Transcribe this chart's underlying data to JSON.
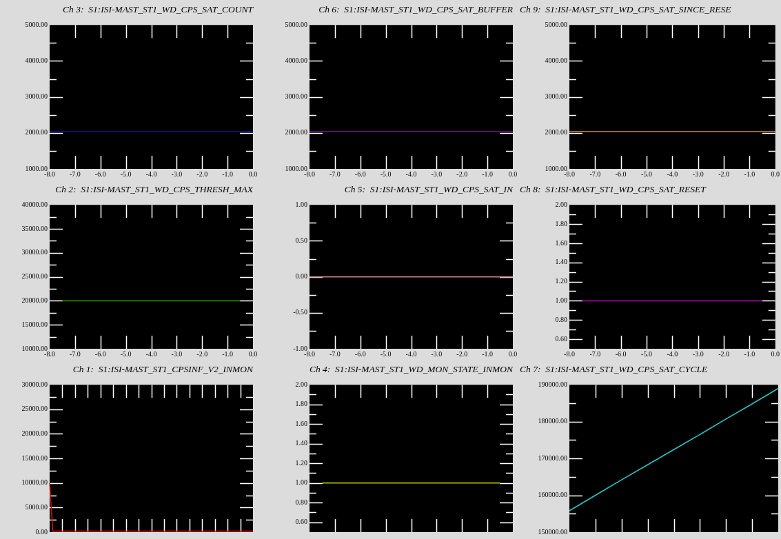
{
  "chart_data": [
    {
      "type": "line",
      "title": "Ch 3:  S1:ISI-MAST_ST1_WD_CPS_SAT_COUNT",
      "marker": "none",
      "legend": false,
      "x": [
        -8,
        0
      ],
      "series": [
        {
          "color": "#14148c",
          "values": [
            2040,
            2040
          ]
        }
      ],
      "xlim": [
        -8,
        0
      ],
      "xticks": [
        {
          "value": -8,
          "label": "-8.0"
        },
        {
          "value": -7,
          "label": "-7.0"
        },
        {
          "value": -6,
          "label": "-6.0"
        },
        {
          "value": -5,
          "label": "-5.0"
        },
        {
          "value": -4,
          "label": "-4.0"
        },
        {
          "value": -3,
          "label": "-3.0"
        },
        {
          "value": -2,
          "label": "-2.0"
        },
        {
          "value": -1,
          "label": "-1.0"
        },
        {
          "value": 0,
          "label": "0.0"
        }
      ],
      "ylim": [
        1000,
        5000
      ],
      "yticks": [
        {
          "value": 1000,
          "label": "1000.00"
        },
        {
          "value": 1500,
          "label": null
        },
        {
          "value": 2000,
          "label": "2000.00"
        },
        {
          "value": 2500,
          "label": null
        },
        {
          "value": 3000,
          "label": "3000.00"
        },
        {
          "value": 3500,
          "label": null
        },
        {
          "value": 4000,
          "label": "4000.00"
        },
        {
          "value": 4500,
          "label": null
        },
        {
          "value": 5000,
          "label": "5000.00"
        }
      ]
    },
    {
      "type": "line",
      "title": "Ch 6:  S1:ISI-MAST_ST1_WD_CPS_SAT_BUFFER",
      "marker": "none",
      "legend": false,
      "x": [
        -8,
        0
      ],
      "series": [
        {
          "color": "#6a0a8c",
          "values": [
            2040,
            2040
          ]
        }
      ],
      "xlim": [
        -8,
        0
      ],
      "xticks": [
        {
          "value": -8,
          "label": "-8.0"
        },
        {
          "value": -7,
          "label": "-7.0"
        },
        {
          "value": -6,
          "label": "-6.0"
        },
        {
          "value": -5,
          "label": "-5.0"
        },
        {
          "value": -4,
          "label": "-4.0"
        },
        {
          "value": -3,
          "label": "-3.0"
        },
        {
          "value": -2,
          "label": "-2.0"
        },
        {
          "value": -1,
          "label": "-1.0"
        },
        {
          "value": 0,
          "label": "0.0"
        }
      ],
      "ylim": [
        1000,
        5000
      ],
      "yticks": [
        {
          "value": 1000,
          "label": "1000.00"
        },
        {
          "value": 1500,
          "label": null
        },
        {
          "value": 2000,
          "label": "2000.00"
        },
        {
          "value": 2500,
          "label": null
        },
        {
          "value": 3000,
          "label": "3000.00"
        },
        {
          "value": 3500,
          "label": null
        },
        {
          "value": 4000,
          "label": "4000.00"
        },
        {
          "value": 4500,
          "label": null
        },
        {
          "value": 5000,
          "label": "5000.00"
        }
      ]
    },
    {
      "type": "line",
      "title": "Ch 9:  S1:ISI-MAST_ST1_WD_CPS_SAT_SINCE_RESE",
      "marker": "none",
      "legend": false,
      "x": [
        -8,
        0
      ],
      "series": [
        {
          "color": "#c07a10",
          "values": [
            2040,
            2040
          ]
        }
      ],
      "xlim": [
        -8,
        0
      ],
      "xticks": [
        {
          "value": -8,
          "label": "-8.0"
        },
        {
          "value": -7,
          "label": "-7.0"
        },
        {
          "value": -6,
          "label": "-6.0"
        },
        {
          "value": -5,
          "label": "-5.0"
        },
        {
          "value": -4,
          "label": "-4.0"
        },
        {
          "value": -3,
          "label": "-3.0"
        },
        {
          "value": -2,
          "label": "-2.0"
        },
        {
          "value": -1,
          "label": "-1.0"
        },
        {
          "value": 0,
          "label": "0.0"
        }
      ],
      "ylim": [
        1000,
        5000
      ],
      "yticks": [
        {
          "value": 1000,
          "label": "1000.00"
        },
        {
          "value": 1500,
          "label": null
        },
        {
          "value": 2000,
          "label": "2000.00"
        },
        {
          "value": 2500,
          "label": null
        },
        {
          "value": 3000,
          "label": "3000.00"
        },
        {
          "value": 3500,
          "label": null
        },
        {
          "value": 4000,
          "label": "4000.00"
        },
        {
          "value": 4500,
          "label": null
        },
        {
          "value": 5000,
          "label": "5000.00"
        }
      ]
    },
    {
      "type": "line",
      "title": "Ch 2:  S1:ISI-MAST_ST1_WD_CPS_THRESH_MAX",
      "marker": "none",
      "legend": false,
      "x": [
        -7.5,
        -0.5
      ],
      "series": [
        {
          "color": "#0a8a0a",
          "values": [
            20000,
            20000
          ]
        }
      ],
      "xlim": [
        -8,
        0
      ],
      "xticks": [
        {
          "value": -8,
          "label": "-8.0"
        },
        {
          "value": -7,
          "label": "-7.0"
        },
        {
          "value": -6,
          "label": "-6.0"
        },
        {
          "value": -5,
          "label": "-5.0"
        },
        {
          "value": -4,
          "label": "-4.0"
        },
        {
          "value": -3,
          "label": "-3.0"
        },
        {
          "value": -2,
          "label": "-2.0"
        },
        {
          "value": -1,
          "label": "-1.0"
        },
        {
          "value": 0,
          "label": "0.0"
        }
      ],
      "ylim": [
        10000,
        40000
      ],
      "yticks": [
        {
          "value": 10000,
          "label": "10000.00"
        },
        {
          "value": 12500,
          "label": null
        },
        {
          "value": 15000,
          "label": "15000.00"
        },
        {
          "value": 17500,
          "label": null
        },
        {
          "value": 20000,
          "label": "20000.00"
        },
        {
          "value": 22500,
          "label": null
        },
        {
          "value": 25000,
          "label": "25000.00"
        },
        {
          "value": 27500,
          "label": null
        },
        {
          "value": 30000,
          "label": "30000.00"
        },
        {
          "value": 32500,
          "label": null
        },
        {
          "value": 35000,
          "label": "35000.00"
        },
        {
          "value": 37500,
          "label": null
        },
        {
          "value": 40000,
          "label": "40000.00"
        }
      ]
    },
    {
      "type": "line",
      "title": "Ch 5:  S1:ISI-MAST_ST1_WD_CPS_SAT_IN",
      "marker": "none",
      "legend": false,
      "x": [
        -8,
        0
      ],
      "series": [
        {
          "color": "#c08080",
          "values": [
            0,
            0
          ]
        }
      ],
      "xlim": [
        -8,
        0
      ],
      "xticks": [
        {
          "value": -8,
          "label": "-8.0"
        },
        {
          "value": -7,
          "label": "-7.0"
        },
        {
          "value": -6,
          "label": "-6.0"
        },
        {
          "value": -5,
          "label": "-5.0"
        },
        {
          "value": -4,
          "label": "-4.0"
        },
        {
          "value": -3,
          "label": "-3.0"
        },
        {
          "value": -2,
          "label": "-2.0"
        },
        {
          "value": -1,
          "label": "-1.0"
        },
        {
          "value": 0,
          "label": "0.0"
        }
      ],
      "ylim": [
        -1,
        1
      ],
      "yticks": [
        {
          "value": -1,
          "label": "-1.00"
        },
        {
          "value": -0.75,
          "label": null
        },
        {
          "value": -0.5,
          "label": "-0.50"
        },
        {
          "value": -0.25,
          "label": null
        },
        {
          "value": 0,
          "label": "0.00"
        },
        {
          "value": 0.25,
          "label": null
        },
        {
          "value": 0.5,
          "label": "0.50"
        },
        {
          "value": 0.75,
          "label": null
        },
        {
          "value": 1,
          "label": "1.00"
        }
      ]
    },
    {
      "type": "line",
      "title": "Ch 8:  S1:ISI-MAST_ST1_WD_CPS_SAT_RESET",
      "marker": "none",
      "legend": false,
      "x": [
        -7.5,
        -0.5
      ],
      "series": [
        {
          "color": "#a000a0",
          "values": [
            1,
            1
          ]
        }
      ],
      "xlim": [
        -8,
        0
      ],
      "xticks": [
        {
          "value": -8,
          "label": "-8.0"
        },
        {
          "value": -7,
          "label": "-7.0"
        },
        {
          "value": -6,
          "label": "-6.0"
        },
        {
          "value": -5,
          "label": "-5.0"
        },
        {
          "value": -4,
          "label": "-4.0"
        },
        {
          "value": -3,
          "label": "-3.0"
        },
        {
          "value": -2,
          "label": "-2.0"
        },
        {
          "value": -1,
          "label": "-1.0"
        },
        {
          "value": 0,
          "label": "0.0"
        }
      ],
      "ylim": [
        0.5,
        2
      ],
      "yticks": [
        {
          "value": 0.6,
          "label": "0.60"
        },
        {
          "value": 0.7,
          "label": null
        },
        {
          "value": 0.8,
          "label": "0.80"
        },
        {
          "value": 0.9,
          "label": null
        },
        {
          "value": 1,
          "label": "1.00"
        },
        {
          "value": 1.1,
          "label": null
        },
        {
          "value": 1.2,
          "label": "1.20"
        },
        {
          "value": 1.3,
          "label": null
        },
        {
          "value": 1.4,
          "label": "1.40"
        },
        {
          "value": 1.5,
          "label": null
        },
        {
          "value": 1.6,
          "label": "1.60"
        },
        {
          "value": 1.7,
          "label": null
        },
        {
          "value": 1.8,
          "label": "1.80"
        },
        {
          "value": 1.9,
          "label": null
        },
        {
          "value": 2,
          "label": "2.00"
        }
      ]
    },
    {
      "type": "line",
      "title": "Ch 1:  S1:ISI-MAST_ST1_CPSINF_V2_INMON",
      "marker": "none",
      "legend": false,
      "tick_labels": "y",
      "categories": [
        null,
        null,
        null,
        null,
        null,
        null,
        null,
        null,
        null,
        null,
        null,
        null,
        null,
        null,
        null,
        null,
        null,
        null,
        null,
        null,
        null,
        null,
        null,
        null,
        null,
        null,
        null,
        null,
        null,
        null,
        null,
        null,
        null,
        null,
        null,
        null,
        null,
        null,
        null,
        null,
        null,
        null,
        null,
        null,
        null,
        null,
        null,
        null,
        null,
        null,
        null,
        null,
        null,
        null,
        null,
        null,
        null,
        null,
        null,
        null,
        null,
        null,
        null,
        null,
        null
      ],
      "series": [
        {
          "color": "#d01010",
          "values": [
            10000,
            200,
            200,
            200,
            200,
            200,
            200,
            200,
            200,
            200,
            200,
            200,
            200,
            200,
            200,
            200,
            200,
            200,
            200,
            200,
            200,
            200,
            200,
            200,
            200,
            200,
            200,
            200,
            200,
            200,
            200,
            200,
            200,
            200,
            200,
            200,
            200,
            200,
            200,
            200,
            200,
            200,
            200,
            200,
            200,
            200,
            200,
            200,
            200,
            200,
            200,
            200,
            200,
            200,
            200,
            200,
            200,
            200,
            200,
            200,
            200,
            200,
            200,
            200,
            200
          ]
        }
      ],
      "ylim": [
        0,
        30000
      ],
      "yticks": [
        {
          "value": 0,
          "label": "0.00"
        },
        {
          "value": 2500,
          "label": null
        },
        {
          "value": 5000,
          "label": "5000.00"
        },
        {
          "value": 7500,
          "label": null
        },
        {
          "value": 10000,
          "label": "10000.00"
        },
        {
          "value": 12500,
          "label": null
        },
        {
          "value": 15000,
          "label": "15000.00"
        },
        {
          "value": 17500,
          "label": null
        },
        {
          "value": 20000,
          "label": "20000.00"
        },
        {
          "value": 22500,
          "label": null
        },
        {
          "value": 25000,
          "label": "25000.00"
        },
        {
          "value": 27500,
          "label": null
        },
        {
          "value": 30000,
          "label": "30000.00"
        }
      ]
    },
    {
      "type": "line",
      "title": "Ch 4:  S1:ISI-MAST_ST1_WD_MON_STATE_INMON",
      "marker": "none",
      "legend": false,
      "tick_labels": "y",
      "categories": [
        null,
        null,
        null,
        null,
        null,
        null,
        null,
        null,
        null,
        null,
        null,
        null,
        null,
        null,
        null,
        null,
        null
      ],
      "series": [
        {
          "color": "#c8c800",
          "values": [
            null,
            1,
            1,
            1,
            1,
            1,
            1,
            1,
            1,
            1,
            1,
            1,
            1,
            1,
            1,
            1,
            null
          ]
        }
      ],
      "ylim": [
        0.5,
        2
      ],
      "yticks": [
        {
          "value": 0.6,
          "label": "0.60"
        },
        {
          "value": 0.7,
          "label": null
        },
        {
          "value": 0.8,
          "label": "0.80"
        },
        {
          "value": 0.9,
          "label": null
        },
        {
          "value": 1,
          "label": "1.00"
        },
        {
          "value": 1.1,
          "label": null
        },
        {
          "value": 1.2,
          "label": "1.20"
        },
        {
          "value": 1.3,
          "label": null
        },
        {
          "value": 1.4,
          "label": "1.40"
        },
        {
          "value": 1.5,
          "label": null
        },
        {
          "value": 1.6,
          "label": "1.60"
        },
        {
          "value": 1.7,
          "label": null
        },
        {
          "value": 1.8,
          "label": "1.80"
        },
        {
          "value": 1.9,
          "label": null
        },
        {
          "value": 2,
          "label": "2.00"
        }
      ]
    },
    {
      "type": "line",
      "title": "Ch 7:  S1:ISI-MAST_ST1_WD_CPS_SAT_CYCLE",
      "marker": "none",
      "legend": false,
      "tick_labels": "y",
      "categories": [
        null,
        null,
        null,
        null,
        null,
        null,
        null,
        null,
        null
      ],
      "series": [
        {
          "color": "#20c8c8",
          "values": [
            155800,
            160000,
            164200,
            168300,
            172400,
            176500,
            180700,
            184800,
            189000
          ]
        }
      ],
      "ylim": [
        150000,
        190000
      ],
      "yticks": [
        {
          "value": 150000,
          "label": "150000.00"
        },
        {
          "value": 155000,
          "label": null
        },
        {
          "value": 160000,
          "label": "160000.00"
        },
        {
          "value": 165000,
          "label": null
        },
        {
          "value": 170000,
          "label": "170000.00"
        },
        {
          "value": 175000,
          "label": null
        },
        {
          "value": 180000,
          "label": "180000.00"
        },
        {
          "value": 185000,
          "label": null
        },
        {
          "value": 190000,
          "label": "190000.00"
        }
      ]
    }
  ]
}
